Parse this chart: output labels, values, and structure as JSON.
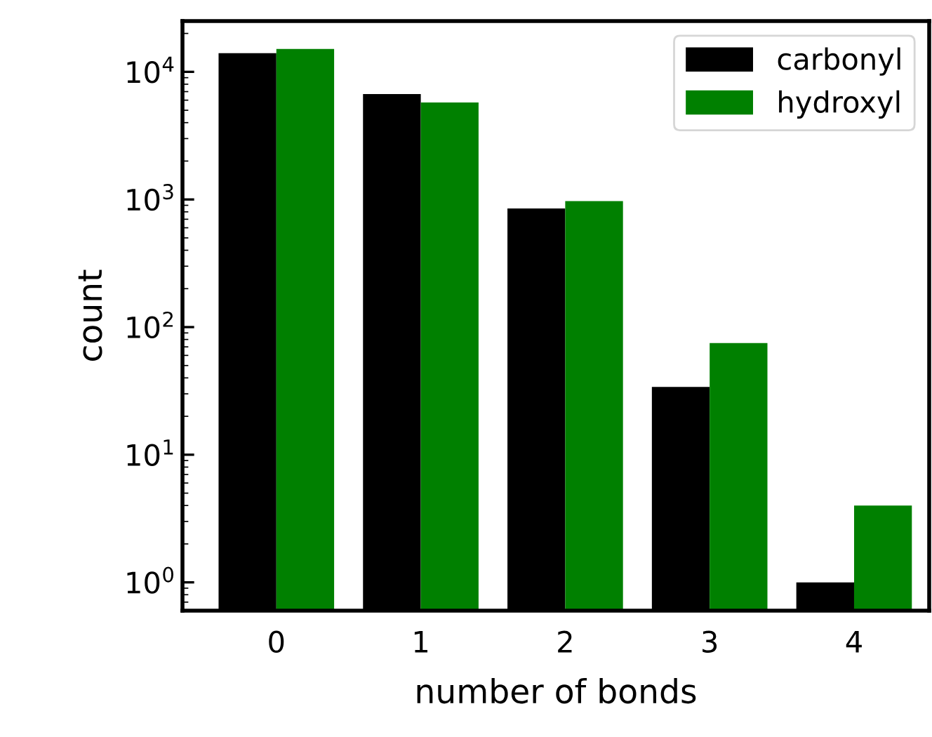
{
  "chart_data": {
    "type": "bar",
    "xlabel": "number of bonds",
    "ylabel": "count",
    "categories": [
      "0",
      "1",
      "2",
      "3",
      "4"
    ],
    "series": [
      {
        "name": "carbonyl",
        "color": "#000000",
        "values": [
          14000,
          6700,
          850,
          34,
          1
        ]
      },
      {
        "name": "hydroxyl",
        "color": "#008000",
        "values": [
          15100,
          5750,
          970,
          75,
          4
        ]
      }
    ],
    "log": true,
    "ylim": [
      0.6,
      25000
    ],
    "yticks": [
      {
        "value": 1,
        "label": "10$^{0}$"
      },
      {
        "value": 10,
        "label": "10$^{1}$"
      },
      {
        "value": 100,
        "label": "10$^{2}$"
      },
      {
        "value": 1000,
        "label": "10$^{3}$"
      },
      {
        "value": 10000,
        "label": "10$^{4}$"
      }
    ],
    "legend": "top right"
  }
}
